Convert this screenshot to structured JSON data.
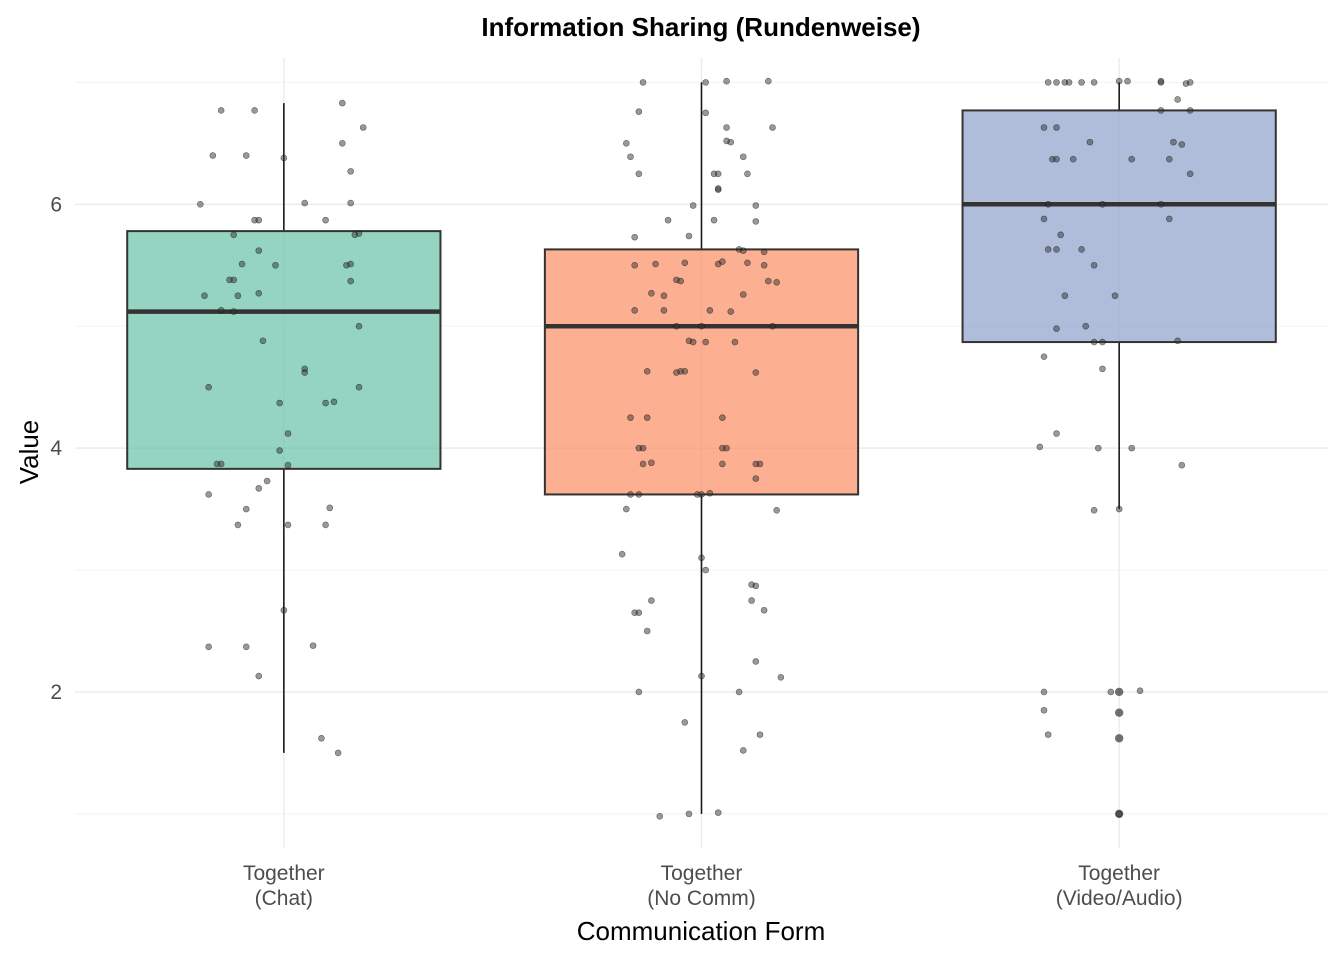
{
  "chart_data": {
    "type": "box",
    "title": "Information Sharing (Rundenweise)",
    "xlabel": "Communication Form",
    "ylabel": "Value",
    "ylim": [
      0.72,
      7.2
    ],
    "yticks": [
      2,
      4,
      6
    ],
    "grid": true,
    "legend": "none",
    "categories": [
      {
        "line1": "Together",
        "line2": "(Chat)"
      },
      {
        "line1": "Together",
        "line2": "(No Comm)"
      },
      {
        "line1": "Together",
        "line2": "(Video/Audio)"
      }
    ],
    "series": [
      {
        "color": "#66c2a5",
        "box": {
          "min": 1.5,
          "q1": 3.83,
          "median": 5.12,
          "q3": 5.78,
          "max": 6.83
        },
        "outliers": [],
        "points": [
          [
            -0.15,
            6.77
          ],
          [
            -0.07,
            6.77
          ],
          [
            0.14,
            6.83
          ],
          [
            -0.17,
            6.4
          ],
          [
            -0.09,
            6.4
          ],
          [
            0.0,
            6.38
          ],
          [
            0.19,
            6.63
          ],
          [
            0.14,
            6.5
          ],
          [
            0.16,
            6.27
          ],
          [
            -0.2,
            6.0
          ],
          [
            0.05,
            6.01
          ],
          [
            0.16,
            6.01
          ],
          [
            -0.07,
            5.87
          ],
          [
            -0.06,
            5.87
          ],
          [
            0.1,
            5.87
          ],
          [
            -0.12,
            5.75
          ],
          [
            0.17,
            5.75
          ],
          [
            0.18,
            5.76
          ],
          [
            -0.06,
            5.62
          ],
          [
            -0.1,
            5.51
          ],
          [
            -0.02,
            5.5
          ],
          [
            0.15,
            5.5
          ],
          [
            0.16,
            5.51
          ],
          [
            -0.13,
            5.38
          ],
          [
            -0.12,
            5.38
          ],
          [
            0.16,
            5.37
          ],
          [
            -0.19,
            5.25
          ],
          [
            -0.11,
            5.25
          ],
          [
            -0.06,
            5.27
          ],
          [
            -0.15,
            5.13
          ],
          [
            -0.12,
            5.12
          ],
          [
            -0.05,
            4.88
          ],
          [
            0.18,
            5.0
          ],
          [
            0.05,
            4.65
          ],
          [
            0.05,
            4.62
          ],
          [
            -0.18,
            4.5
          ],
          [
            0.18,
            4.5
          ],
          [
            -0.01,
            4.37
          ],
          [
            0.1,
            4.37
          ],
          [
            0.12,
            4.38
          ],
          [
            0.01,
            4.12
          ],
          [
            -0.01,
            3.98
          ],
          [
            -0.16,
            3.87
          ],
          [
            -0.15,
            3.87
          ],
          [
            0.01,
            3.86
          ],
          [
            -0.04,
            3.73
          ],
          [
            -0.06,
            3.67
          ],
          [
            -0.18,
            3.62
          ],
          [
            0.11,
            3.51
          ],
          [
            -0.09,
            3.5
          ],
          [
            -0.11,
            3.37
          ],
          [
            0.01,
            3.37
          ],
          [
            0.1,
            3.37
          ],
          [
            0.0,
            2.67
          ],
          [
            -0.18,
            2.37
          ],
          [
            -0.09,
            2.37
          ],
          [
            0.07,
            2.38
          ],
          [
            -0.06,
            2.13
          ],
          [
            0.09,
            1.62
          ],
          [
            0.13,
            1.5
          ]
        ]
      },
      {
        "color": "#fc8d62",
        "box": {
          "min": 1.0,
          "q1": 3.62,
          "median": 5.0,
          "q3": 5.63,
          "max": 7.0
        },
        "outliers": [],
        "points": [
          [
            -0.14,
            7.0
          ],
          [
            0.01,
            7.0
          ],
          [
            0.06,
            7.01
          ],
          [
            0.16,
            7.01
          ],
          [
            -0.15,
            6.76
          ],
          [
            0.01,
            6.75
          ],
          [
            0.06,
            6.63
          ],
          [
            0.17,
            6.63
          ],
          [
            -0.18,
            6.5
          ],
          [
            0.06,
            6.52
          ],
          [
            0.07,
            6.51
          ],
          [
            -0.17,
            6.39
          ],
          [
            0.1,
            6.39
          ],
          [
            -0.15,
            6.25
          ],
          [
            0.03,
            6.25
          ],
          [
            0.04,
            6.25
          ],
          [
            0.11,
            6.25
          ],
          [
            0.04,
            6.12
          ],
          [
            0.04,
            6.13
          ],
          [
            -0.02,
            5.99
          ],
          [
            0.13,
            5.99
          ],
          [
            -0.08,
            5.87
          ],
          [
            0.03,
            5.87
          ],
          [
            0.13,
            5.86
          ],
          [
            -0.16,
            5.73
          ],
          [
            -0.03,
            5.74
          ],
          [
            0.09,
            5.63
          ],
          [
            0.1,
            5.62
          ],
          [
            0.15,
            5.61
          ],
          [
            -0.16,
            5.5
          ],
          [
            -0.11,
            5.51
          ],
          [
            -0.04,
            5.52
          ],
          [
            0.04,
            5.51
          ],
          [
            0.05,
            5.53
          ],
          [
            0.11,
            5.52
          ],
          [
            0.15,
            5.5
          ],
          [
            -0.06,
            5.38
          ],
          [
            -0.05,
            5.37
          ],
          [
            0.16,
            5.37
          ],
          [
            0.18,
            5.36
          ],
          [
            -0.12,
            5.27
          ],
          [
            -0.09,
            5.25
          ],
          [
            0.1,
            5.26
          ],
          [
            -0.16,
            5.13
          ],
          [
            -0.09,
            5.13
          ],
          [
            0.02,
            5.13
          ],
          [
            0.07,
            5.12
          ],
          [
            -0.06,
            5.0
          ],
          [
            0.0,
            5.0
          ],
          [
            0.17,
            5.0
          ],
          [
            -0.03,
            4.88
          ],
          [
            -0.02,
            4.87
          ],
          [
            0.01,
            4.87
          ],
          [
            0.08,
            4.87
          ],
          [
            -0.05,
            4.63
          ],
          [
            -0.06,
            4.62
          ],
          [
            -0.04,
            4.63
          ],
          [
            -0.13,
            4.63
          ],
          [
            0.13,
            4.62
          ],
          [
            -0.17,
            4.25
          ],
          [
            -0.13,
            4.25
          ],
          [
            0.05,
            4.25
          ],
          [
            -0.15,
            4.0
          ],
          [
            -0.14,
            4.0
          ],
          [
            0.05,
            4.0
          ],
          [
            0.06,
            4.0
          ],
          [
            -0.14,
            3.87
          ],
          [
            -0.12,
            3.88
          ],
          [
            0.05,
            3.87
          ],
          [
            0.13,
            3.87
          ],
          [
            0.14,
            3.87
          ],
          [
            0.13,
            3.75
          ],
          [
            -0.17,
            3.62
          ],
          [
            -0.15,
            3.62
          ],
          [
            -0.01,
            3.62
          ],
          [
            0.0,
            3.62
          ],
          [
            0.02,
            3.63
          ],
          [
            -0.18,
            3.5
          ],
          [
            0.18,
            3.49
          ],
          [
            -0.19,
            3.13
          ],
          [
            0.0,
            3.1
          ],
          [
            0.01,
            3.0
          ],
          [
            0.12,
            2.88
          ],
          [
            0.13,
            2.87
          ],
          [
            -0.16,
            2.65
          ],
          [
            -0.15,
            2.65
          ],
          [
            0.15,
            2.67
          ],
          [
            -0.12,
            2.75
          ],
          [
            0.12,
            2.75
          ],
          [
            -0.13,
            2.5
          ],
          [
            0.13,
            2.25
          ],
          [
            0.19,
            2.12
          ],
          [
            0.0,
            2.13
          ],
          [
            -0.15,
            2.0
          ],
          [
            0.09,
            2.0
          ],
          [
            -0.04,
            1.75
          ],
          [
            0.14,
            1.65
          ],
          [
            0.1,
            1.52
          ],
          [
            -0.1,
            0.98
          ],
          [
            -0.03,
            1.0
          ],
          [
            0.04,
            1.01
          ]
        ]
      },
      {
        "color": "#8da0cb",
        "box": {
          "min": 3.5,
          "q1": 4.87,
          "median": 6.0,
          "q3": 6.77,
          "max": 7.0
        },
        "outliers": [
          2.0,
          1.83,
          1.62,
          1.0
        ],
        "points": [
          [
            -0.17,
            7.0
          ],
          [
            -0.15,
            7.0
          ],
          [
            -0.13,
            7.0
          ],
          [
            -0.12,
            7.0
          ],
          [
            -0.09,
            7.0
          ],
          [
            -0.06,
            7.0
          ],
          [
            0.0,
            7.01
          ],
          [
            0.02,
            7.01
          ],
          [
            0.1,
            7.0
          ],
          [
            0.1,
            7.01
          ],
          [
            0.16,
            6.99
          ],
          [
            0.17,
            7.0
          ],
          [
            -0.18,
            6.63
          ],
          [
            -0.15,
            6.63
          ],
          [
            0.1,
            6.77
          ],
          [
            0.17,
            6.77
          ],
          [
            0.14,
            6.86
          ],
          [
            -0.07,
            6.51
          ],
          [
            0.13,
            6.51
          ],
          [
            0.15,
            6.49
          ],
          [
            -0.16,
            6.37
          ],
          [
            -0.15,
            6.37
          ],
          [
            -0.11,
            6.37
          ],
          [
            0.03,
            6.37
          ],
          [
            0.12,
            6.37
          ],
          [
            0.17,
            6.25
          ],
          [
            -0.17,
            6.0
          ],
          [
            -0.04,
            6.0
          ],
          [
            0.1,
            6.0
          ],
          [
            -0.18,
            5.88
          ],
          [
            0.12,
            5.88
          ],
          [
            -0.14,
            5.75
          ],
          [
            -0.17,
            5.63
          ],
          [
            -0.15,
            5.63
          ],
          [
            -0.09,
            5.63
          ],
          [
            -0.06,
            5.5
          ],
          [
            -0.13,
            5.25
          ],
          [
            -0.01,
            5.25
          ],
          [
            -0.15,
            4.98
          ],
          [
            -0.08,
            5.0
          ],
          [
            -0.06,
            4.87
          ],
          [
            -0.04,
            4.87
          ],
          [
            0.14,
            4.88
          ],
          [
            -0.18,
            4.75
          ],
          [
            -0.04,
            4.65
          ],
          [
            -0.15,
            4.12
          ],
          [
            -0.05,
            4.0
          ],
          [
            -0.19,
            4.01
          ],
          [
            0.03,
            4.0
          ],
          [
            0.15,
            3.86
          ],
          [
            -0.06,
            3.49
          ],
          [
            0.0,
            3.5
          ],
          [
            -0.18,
            2.0
          ],
          [
            -0.02,
            2.0
          ],
          [
            0.05,
            2.01
          ],
          [
            -0.18,
            1.85
          ],
          [
            -0.17,
            1.65
          ],
          [
            0.0,
            1.0
          ]
        ]
      }
    ]
  }
}
